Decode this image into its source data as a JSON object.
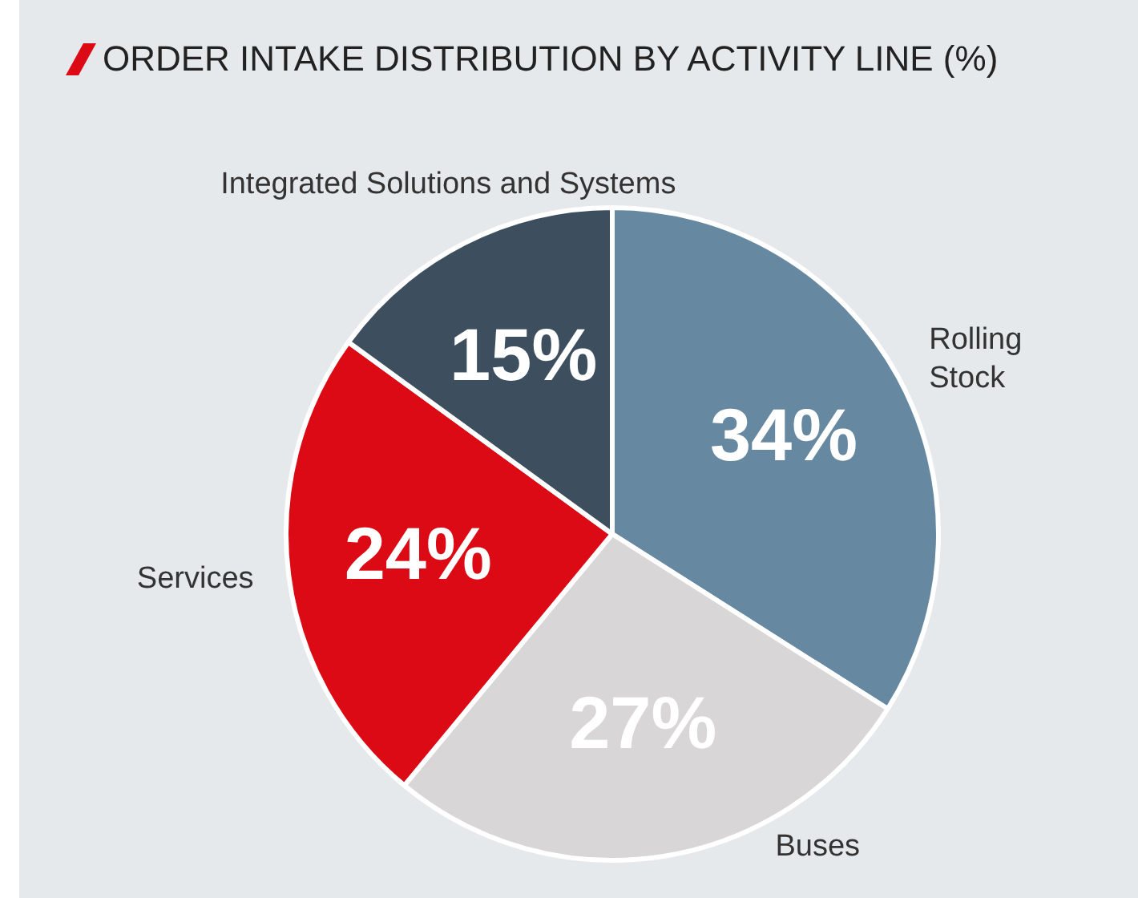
{
  "chart_data": {
    "type": "pie",
    "title": "ORDER INTAKE DISTRIBUTION BY ACTIVITY LINE (%)",
    "categories": [
      "Rolling Stock",
      "Buses",
      "Services",
      "Integrated Solutions and Systems"
    ],
    "values": [
      34,
      27,
      24,
      15
    ],
    "colors": [
      "#6688a0",
      "#d8d6d6",
      "#dc0a14",
      "#3d4f5e"
    ],
    "value_labels": [
      "34%",
      "27%",
      "24%",
      "15%"
    ],
    "legend": false
  }
}
